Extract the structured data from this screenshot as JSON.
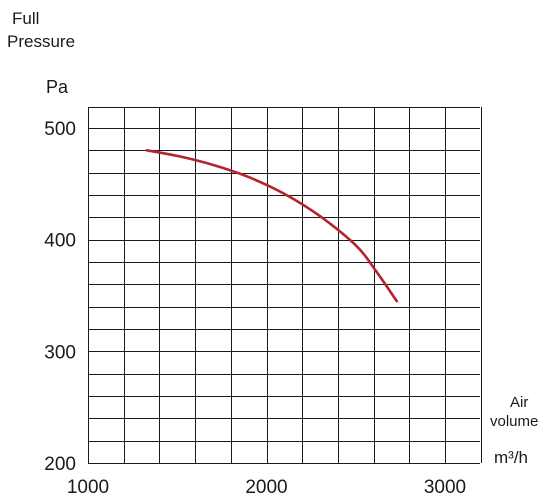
{
  "chart_data": {
    "type": "line",
    "title": "",
    "ylabel_lines": [
      "Full",
      "Pressure"
    ],
    "yunit": "Pa",
    "xlabel_lines": [
      "Air",
      "volume"
    ],
    "xunit": "m³/h",
    "xlim": [
      1000,
      3300
    ],
    "ylim": [
      200,
      500
    ],
    "x_ticks": [
      {
        "value": 1000,
        "label": "1000"
      },
      {
        "value": 2000,
        "label": "2000"
      },
      {
        "value": 3000,
        "label": "3000"
      }
    ],
    "y_ticks": [
      {
        "value": 200,
        "label": "200"
      },
      {
        "value": 300,
        "label": "300"
      },
      {
        "value": 400,
        "label": "400"
      },
      {
        "value": 500,
        "label": "500"
      }
    ],
    "grid": {
      "x_step": 200,
      "y_step": 20,
      "x_extra_top": true
    },
    "series": [
      {
        "color": "#b5232e",
        "x": [
          1330,
          1500,
          1700,
          1900,
          2100,
          2300,
          2500,
          2600,
          2730
        ],
        "y": [
          480,
          475,
          467,
          456,
          441,
          421,
          395,
          375,
          345
        ]
      }
    ]
  }
}
